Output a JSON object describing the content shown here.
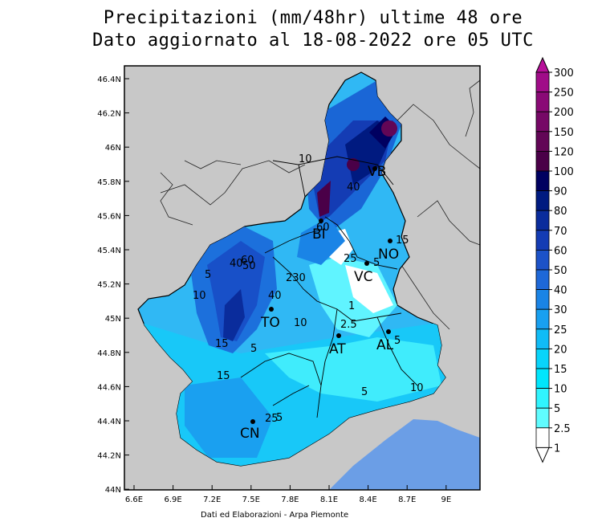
{
  "header": {
    "title_line1": "Precipitazioni (mm/48hr) ultime 48 ore",
    "title_line2": "Dato aggiornato al 18-08-2022 ore 05 UTC"
  },
  "footer": {
    "credit": "Dati ed Elaborazioni - Arpa Piemonte"
  },
  "axes": {
    "x_ticks": [
      "6.6E",
      "6.9E",
      "7.2E",
      "7.5E",
      "7.8E",
      "8.1E",
      "8.4E",
      "8.7E",
      "9E"
    ],
    "y_ticks": [
      "46.4N",
      "46.2N",
      "46N",
      "45.8N",
      "45.6N",
      "45.4N",
      "45.2N",
      "45N",
      "44.8N",
      "44.6N",
      "44.4N",
      "44.2N",
      "44N"
    ]
  },
  "legend": {
    "levels": [
      {
        "label": "300",
        "color": "#b8109a"
      },
      {
        "label": "250",
        "color": "#a00c88"
      },
      {
        "label": "200",
        "color": "#8a0a76"
      },
      {
        "label": "150",
        "color": "#760866"
      },
      {
        "label": "120",
        "color": "#620656"
      },
      {
        "label": "100",
        "color": "#4a0048"
      },
      {
        "label": "90",
        "color": "#000060"
      },
      {
        "label": "80",
        "color": "#001a80"
      },
      {
        "label": "70",
        "color": "#0a2c9c"
      },
      {
        "label": "60",
        "color": "#143cb4"
      },
      {
        "label": "50",
        "color": "#1c52c8"
      },
      {
        "label": "40",
        "color": "#1e68d8"
      },
      {
        "label": "30",
        "color": "#1a84e6"
      },
      {
        "label": "25",
        "color": "#18a0f0"
      },
      {
        "label": "20",
        "color": "#10bcf6"
      },
      {
        "label": "15",
        "color": "#08d4fa"
      },
      {
        "label": "10",
        "color": "#00e6fc"
      },
      {
        "label": "5",
        "color": "#30f4fe"
      },
      {
        "label": "2.5",
        "color": "#60fcff"
      },
      {
        "label": "1",
        "color": "#ffffff"
      }
    ]
  },
  "cities": [
    "VB",
    "BI",
    "NO",
    "VC",
    "TO",
    "AT",
    "AL",
    "CN"
  ],
  "contour_labels": [
    "10",
    "60",
    "40",
    "50",
    "5",
    "15",
    "25",
    "5",
    "40",
    "230",
    "10",
    "1",
    "2.5",
    "5",
    "10",
    "15",
    "5",
    "10",
    "5",
    "40",
    "60",
    "25",
    "5",
    "15"
  ],
  "colors": {
    "ocean": "#6b9ee6",
    "outside": "#c8c8c8",
    "frame": "#000000"
  }
}
